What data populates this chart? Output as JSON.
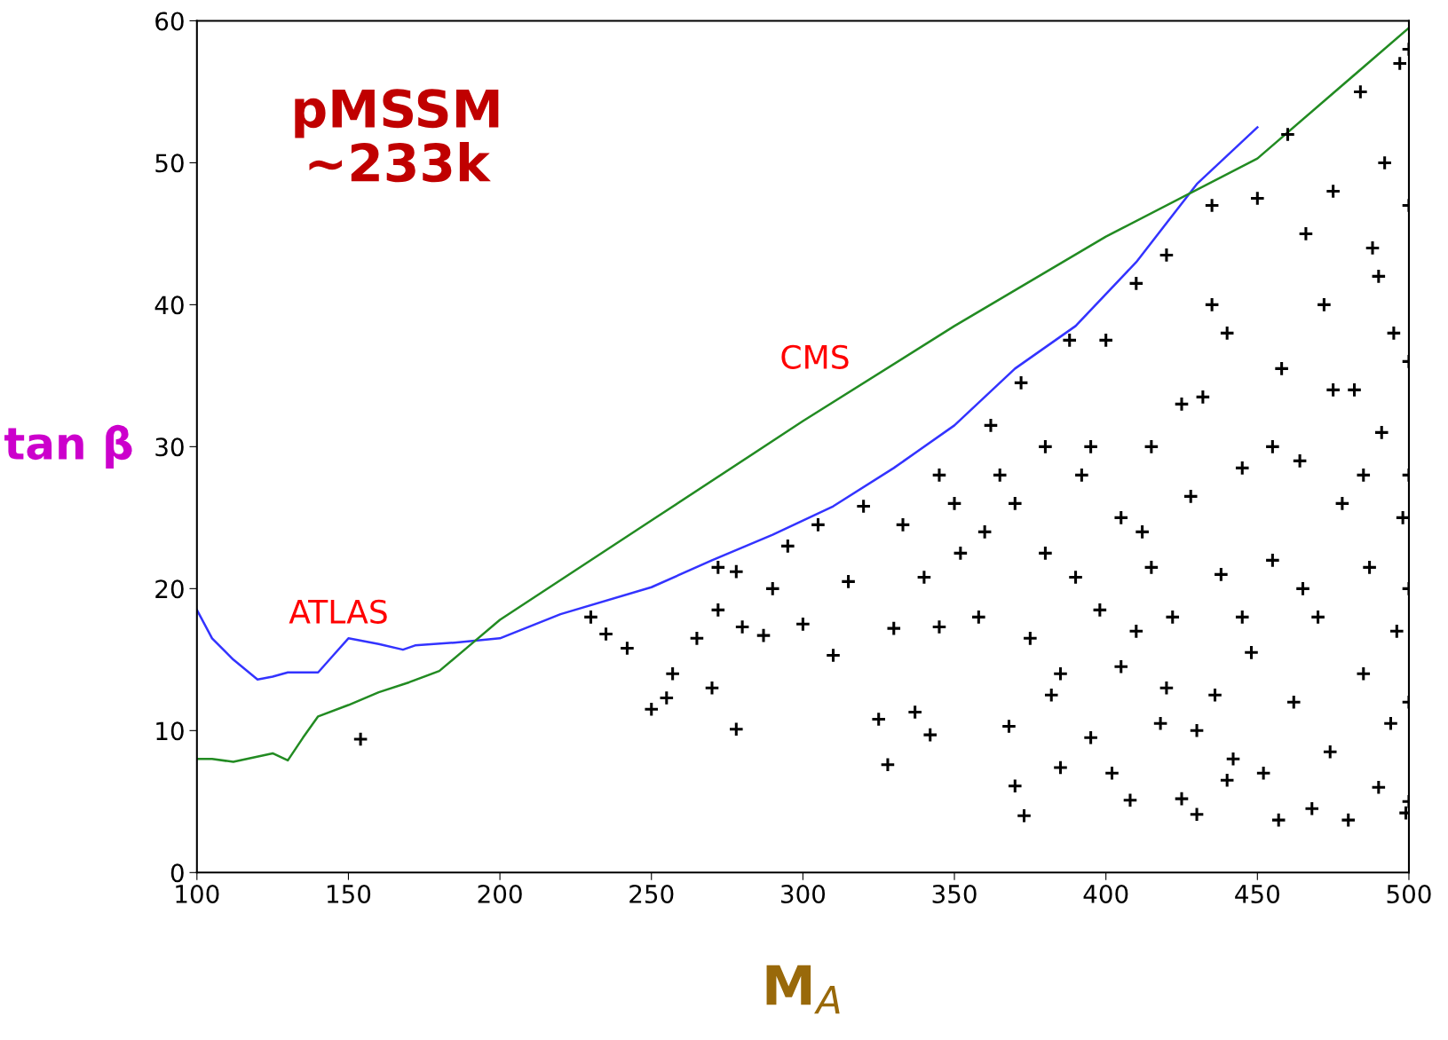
{
  "chart_data": {
    "type": "scatter",
    "xlabel": "M$_{A}$",
    "ylabel": "tan β",
    "xlim": [
      100,
      500
    ],
    "xticks": [
      100,
      150,
      200,
      250,
      300,
      350,
      400,
      450,
      500
    ],
    "ylim": [
      0,
      60
    ],
    "yticks": [
      0,
      10,
      20,
      30,
      40,
      50,
      60
    ],
    "grid": false,
    "legend": false,
    "annotations": [
      "pMSSM\n~233k",
      "ATLAS",
      "CMS"
    ],
    "series": [
      {
        "type": "line",
        "color": "#3333ff",
        "marker": "none",
        "x": [
          100,
          105,
          112,
          120,
          125,
          130,
          140,
          145,
          150,
          160,
          168,
          172,
          185,
          200,
          220,
          250,
          270,
          290,
          310,
          330,
          350,
          370,
          390,
          410,
          430,
          450
        ],
        "values": [
          18.5,
          16.5,
          15.0,
          13.6,
          13.8,
          14.1,
          14.1,
          15.3,
          16.5,
          16.1,
          15.7,
          16.0,
          16.2,
          16.5,
          18.2,
          20.1,
          22.0,
          23.8,
          25.8,
          28.5,
          31.5,
          35.5,
          38.5,
          43.0,
          48.5,
          52.5
        ]
      },
      {
        "type": "line",
        "color": "#228b22",
        "marker": "none",
        "x": [
          100,
          105,
          112,
          125,
          130,
          135,
          140,
          150,
          160,
          170,
          180,
          190,
          200,
          250,
          300,
          350,
          400,
          450,
          500
        ],
        "values": [
          8.0,
          8.0,
          7.8,
          8.4,
          7.9,
          9.5,
          11.0,
          11.8,
          12.7,
          13.4,
          14.2,
          16.0,
          17.8,
          24.8,
          31.8,
          38.5,
          44.8,
          50.3,
          59.5
        ]
      },
      {
        "color": "#000000",
        "marker": "cross",
        "x": [
          154,
          230,
          235,
          242,
          250,
          255,
          257,
          265,
          270,
          272,
          272,
          278,
          278,
          280,
          287,
          290,
          295,
          300,
          305,
          310,
          315,
          320,
          325,
          328,
          330,
          333,
          337,
          340,
          342,
          345,
          350,
          352,
          358,
          362,
          365,
          368,
          370,
          372,
          373,
          375,
          380,
          382,
          385,
          388,
          390,
          392,
          395,
          398,
          400,
          402,
          405,
          408,
          410,
          412,
          415,
          418,
          420,
          422,
          425,
          428,
          430,
          432,
          435,
          436,
          438,
          440,
          442,
          445,
          448,
          450,
          452,
          455,
          457,
          458,
          460,
          462,
          464,
          466,
          468,
          470,
          472,
          474,
          475,
          478,
          480,
          482,
          484,
          485,
          487,
          488,
          490,
          491,
          492,
          494,
          495,
          496,
          497,
          498,
          499,
          500,
          500,
          500,
          500,
          500,
          500,
          500,
          405,
          395,
          385,
          360,
          345,
          415,
          425,
          435,
          445,
          455,
          465,
          475,
          485,
          490,
          380,
          370,
          410,
          420,
          430,
          440
        ],
        "values": [
          9.4,
          18,
          16.8,
          15.8,
          11.5,
          12.3,
          14,
          16.5,
          13,
          18.5,
          21.5,
          10.1,
          21.2,
          17.3,
          16.7,
          20,
          23,
          17.5,
          24.5,
          15.3,
          20.5,
          25.8,
          10.8,
          7.6,
          17.2,
          24.5,
          11.3,
          20.8,
          9.7,
          17.3,
          26,
          22.5,
          18,
          31.5,
          28,
          10.3,
          6.1,
          34.5,
          4,
          16.5,
          22.5,
          12.5,
          7.4,
          37.5,
          20.8,
          28,
          9.5,
          18.5,
          37.5,
          7,
          14.5,
          5.1,
          41.5,
          24,
          30,
          10.5,
          43.5,
          18,
          5.2,
          26.5,
          4.1,
          33.5,
          47,
          12.5,
          21,
          38,
          8,
          28.5,
          15.5,
          47.5,
          7,
          22,
          3.7,
          35.5,
          52,
          12,
          29,
          45,
          4.5,
          18,
          40,
          8.5,
          48,
          26,
          3.7,
          34,
          55,
          14,
          21.5,
          44,
          6,
          31,
          50,
          10.5,
          38,
          17,
          57,
          25,
          4.2,
          58,
          47,
          36,
          28,
          20,
          12,
          5,
          25,
          30,
          14,
          24,
          28,
          21.5,
          33,
          40,
          18,
          30,
          20,
          34,
          28,
          42,
          30,
          26,
          17,
          13,
          10,
          6.5
        ]
      }
    ]
  }
}
